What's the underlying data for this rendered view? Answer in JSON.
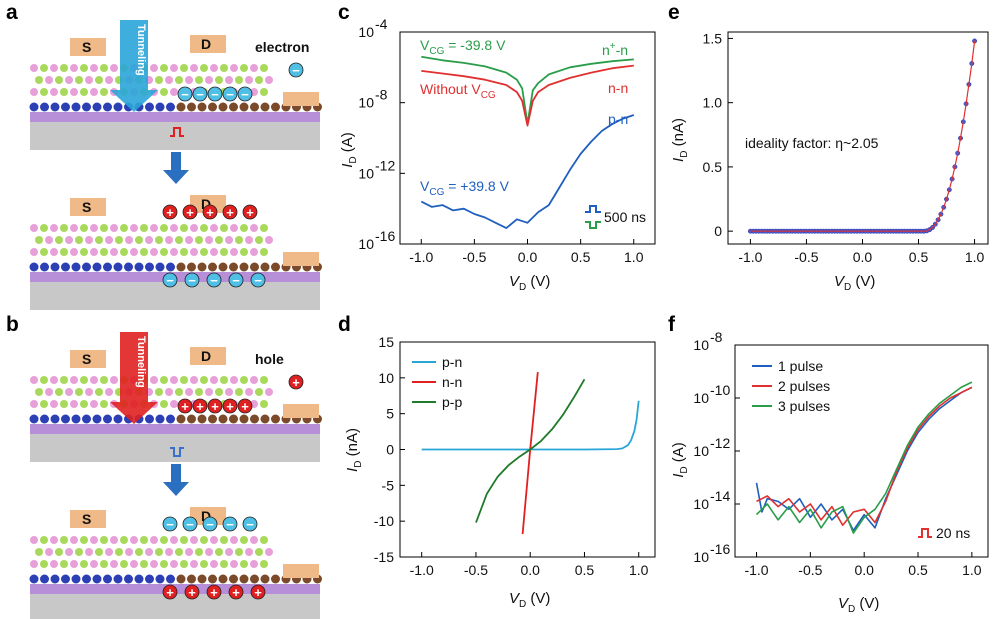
{
  "panel_labels": [
    "a",
    "b",
    "c",
    "d",
    "e",
    "f"
  ],
  "schematics": {
    "a": {
      "top": {
        "source_label": "S",
        "drain_label": "D",
        "tunnel_label": "Tunneling",
        "carrier_label": "electron",
        "carrier_symbol": "−"
      },
      "bottom": {
        "source_label": "S",
        "drain_label": "D"
      },
      "colors": {
        "arrow": "#2aa5d8",
        "charge_in_channel": "#4fbfe6",
        "charge_in_gate": "#e02020"
      }
    },
    "b": {
      "top": {
        "source_label": "S",
        "drain_label": "D",
        "tunnel_label": "Tunneling",
        "carrier_label": "hole",
        "carrier_symbol": "+"
      },
      "bottom": {
        "source_label": "S",
        "drain_label": "D"
      },
      "colors": {
        "arrow": "#e02020",
        "charge_in_channel": "#e02020",
        "charge_in_gate": "#4fbfe6"
      }
    }
  },
  "chart_data": [
    {
      "id": "c",
      "type": "line",
      "xlabel_main": "V",
      "xlabel_sub": "D",
      "xlabel_unit": " (V)",
      "ylabel_main": "I",
      "ylabel_sub": "D",
      "ylabel_unit": " (A)",
      "xlim": [
        -1.2,
        1.2
      ],
      "ylim_log10": [
        -16,
        -4
      ],
      "xticks": [
        "-1.0",
        "-0.5",
        "0.0",
        "0.5",
        "1.0"
      ],
      "yticks_exp": [
        "-4",
        "-8",
        "-12",
        "-16"
      ],
      "series": [
        {
          "name": "n+-n",
          "color": "#2a9d4a",
          "x": [
            -1.0,
            -0.8,
            -0.6,
            -0.4,
            -0.2,
            -0.1,
            -0.05,
            0,
            0.05,
            0.1,
            0.2,
            0.4,
            0.6,
            0.8,
            1.0
          ],
          "y_log10": [
            -5.4,
            -5.6,
            -5.75,
            -5.95,
            -6.3,
            -6.7,
            -7.2,
            -9.2,
            -7.3,
            -6.9,
            -6.4,
            -6.0,
            -5.8,
            -5.65,
            -5.55
          ]
        },
        {
          "name": "n-n",
          "color": "#e03030",
          "x": [
            -1.0,
            -0.8,
            -0.6,
            -0.4,
            -0.2,
            -0.1,
            -0.05,
            0,
            0.05,
            0.1,
            0.2,
            0.4,
            0.6,
            0.8,
            1.0
          ],
          "y_log10": [
            -6.2,
            -6.35,
            -6.5,
            -6.7,
            -7.0,
            -7.4,
            -7.9,
            -9.3,
            -7.9,
            -7.4,
            -7.0,
            -6.6,
            -6.3,
            -6.05,
            -5.9
          ]
        },
        {
          "name": "p-n",
          "color": "#1f5fbf",
          "x": [
            -1.0,
            -0.9,
            -0.8,
            -0.7,
            -0.6,
            -0.5,
            -0.4,
            -0.3,
            -0.2,
            -0.1,
            0,
            0.1,
            0.2,
            0.3,
            0.4,
            0.5,
            0.6,
            0.7,
            0.8,
            0.9,
            1.0
          ],
          "y_log10": [
            -13.6,
            -13.9,
            -13.8,
            -14.1,
            -14.0,
            -14.3,
            -14.5,
            -14.8,
            -15.1,
            -14.6,
            -14.8,
            -14.2,
            -13.8,
            -12.8,
            -11.8,
            -10.9,
            -10.2,
            -9.6,
            -9.2,
            -8.9,
            -8.7
          ]
        }
      ],
      "labels": {
        "vcg_neg": "V",
        "vcg_neg_sub": "CG",
        "vcg_neg_rest": " = -39.8 V",
        "without": "Without V",
        "without_sub": "CG",
        "nplus_n": "n",
        "nplus_sup": "+",
        "nplus_rest": "-n",
        "n_n": "n-n",
        "p_n": "p-n",
        "vcg_pos": "V",
        "vcg_pos_sub": "CG",
        "vcg_pos_rest": " = +39.8 V",
        "pulse": "500 ns"
      }
    },
    {
      "id": "d",
      "type": "line",
      "xlabel_main": "V",
      "xlabel_sub": "D",
      "xlabel_unit": " (V)",
      "ylabel_main": "I",
      "ylabel_sub": "D",
      "ylabel_unit": " (nA)",
      "xlim": [
        -1.2,
        1.15
      ],
      "ylim": [
        -15,
        15
      ],
      "xticks": [
        "-1.0",
        "-0.5",
        "0.0",
        "0.5",
        "1.0"
      ],
      "yticks": [
        "15",
        "10",
        "5",
        "0",
        "-5",
        "-10",
        "-15"
      ],
      "legend": "top-left",
      "series": [
        {
          "name": "p-n",
          "color": "#2aa5d8",
          "x": [
            -1.0,
            -0.5,
            0,
            0.5,
            0.8,
            0.85,
            0.9,
            0.93,
            0.96,
            0.98,
            1.0
          ],
          "y": [
            0,
            0,
            0,
            0,
            0.05,
            0.15,
            0.6,
            1.3,
            2.6,
            4.2,
            6.8
          ]
        },
        {
          "name": "n-n",
          "color": "#e02020",
          "x": [
            -0.07,
            0,
            0.07
          ],
          "y": [
            -11.8,
            0,
            10.8
          ]
        },
        {
          "name": "p-p",
          "color": "#1f7a2a",
          "x": [
            -0.5,
            -0.4,
            -0.3,
            -0.2,
            -0.1,
            0,
            0.1,
            0.2,
            0.3,
            0.4,
            0.5
          ],
          "y": [
            -10.2,
            -6.2,
            -3.8,
            -2.2,
            -1.0,
            0,
            1.2,
            2.8,
            4.8,
            7.2,
            9.8
          ]
        }
      ]
    },
    {
      "id": "e",
      "type": "scatter",
      "xlabel_main": "V",
      "xlabel_sub": "D",
      "xlabel_unit": " (V)",
      "ylabel_main": "I",
      "ylabel_sub": "D",
      "ylabel_unit": " (nA)",
      "xlim": [
        -1.2,
        1.12
      ],
      "ylim": [
        -0.1,
        1.55
      ],
      "xticks": [
        "-1.0",
        "-0.5",
        "0.0",
        "0.5",
        "1.0"
      ],
      "yticks": [
        "1.5",
        "1.0",
        "0.5",
        "0"
      ],
      "annotation": "ideality factor: η~2.05",
      "series": [
        {
          "name": "",
          "color": "#4a5bd0",
          "fit_color": "#e03030",
          "x_start": -1.0,
          "x_end": 1.0,
          "points": 81,
          "onset": 0.55,
          "y_at_end": 1.48
        }
      ]
    },
    {
      "id": "f",
      "type": "line",
      "xlabel_main": "V",
      "xlabel_sub": "D",
      "xlabel_unit": " (V)",
      "ylabel_main": "I",
      "ylabel_sub": "D",
      "ylabel_unit": " (A)",
      "xlim": [
        -1.2,
        1.15
      ],
      "ylim_log10": [
        -16,
        -8
      ],
      "xticks": [
        "-1.0",
        "-0.5",
        "0.0",
        "0.5",
        "1.0"
      ],
      "yticks_exp": [
        "-8",
        "-10",
        "-12",
        "-14",
        "-16"
      ],
      "legend": "top-left",
      "pulse": "20 ns",
      "series": [
        {
          "name": "1 pulse",
          "color": "#1f5fbf",
          "x": [
            -1.0,
            -0.95,
            -0.9,
            -0.8,
            -0.7,
            -0.6,
            -0.5,
            -0.4,
            -0.3,
            -0.2,
            -0.1,
            0,
            0.1,
            0.2,
            0.3,
            0.4,
            0.5,
            0.6,
            0.7,
            0.8,
            0.9,
            1.0
          ],
          "y_log10": [
            -13.2,
            -14.3,
            -13.8,
            -13.9,
            -14.2,
            -13.8,
            -14.5,
            -14.0,
            -14.6,
            -14.2,
            -15.0,
            -14.4,
            -14.9,
            -13.8,
            -12.9,
            -12.0,
            -11.3,
            -10.8,
            -10.4,
            -10.1,
            -9.8,
            -9.6
          ]
        },
        {
          "name": "2 pulses",
          "color": "#e03030",
          "x": [
            -1.0,
            -0.9,
            -0.8,
            -0.7,
            -0.6,
            -0.5,
            -0.4,
            -0.3,
            -0.2,
            -0.1,
            0,
            0.1,
            0.2,
            0.3,
            0.4,
            0.5,
            0.6,
            0.7,
            0.8,
            0.9,
            1.0
          ],
          "y_log10": [
            -13.9,
            -13.7,
            -14.1,
            -13.8,
            -14.3,
            -14.0,
            -14.6,
            -14.1,
            -14.8,
            -14.3,
            -14.2,
            -14.7,
            -13.9,
            -12.8,
            -11.9,
            -11.2,
            -10.7,
            -10.3,
            -10.0,
            -9.8,
            -9.6
          ]
        },
        {
          "name": "3 pulses",
          "color": "#2a9d4a",
          "x": [
            -1.0,
            -0.9,
            -0.8,
            -0.7,
            -0.6,
            -0.5,
            -0.4,
            -0.3,
            -0.2,
            -0.1,
            0,
            0.1,
            0.2,
            0.3,
            0.4,
            0.5,
            0.6,
            0.7,
            0.8,
            0.9,
            1.0
          ],
          "y_log10": [
            -14.4,
            -14.0,
            -14.6,
            -14.1,
            -14.7,
            -14.2,
            -14.9,
            -14.3,
            -14.1,
            -15.1,
            -14.5,
            -14.2,
            -13.6,
            -12.7,
            -11.8,
            -11.1,
            -10.6,
            -10.2,
            -9.9,
            -9.6,
            -9.4
          ]
        }
      ]
    }
  ]
}
